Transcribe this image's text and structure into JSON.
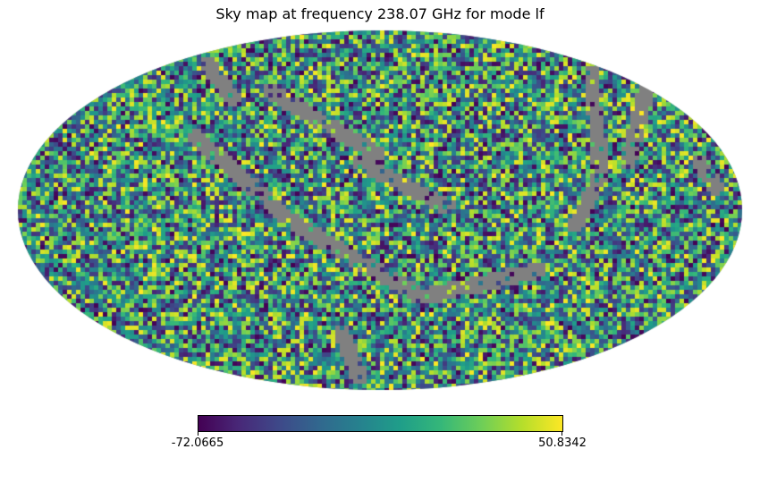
{
  "chart_data": {
    "type": "heatmap",
    "title": "Sky map at frequency 238.07 GHz for mode lf",
    "projection": "mollweide",
    "colormap": "viridis",
    "masked_color": "#808080",
    "colorbar": {
      "min": -72.0665,
      "max": 50.8342,
      "min_label": "-72.0665",
      "max_label": "50.8342"
    },
    "xlabel": "",
    "ylabel": ""
  }
}
